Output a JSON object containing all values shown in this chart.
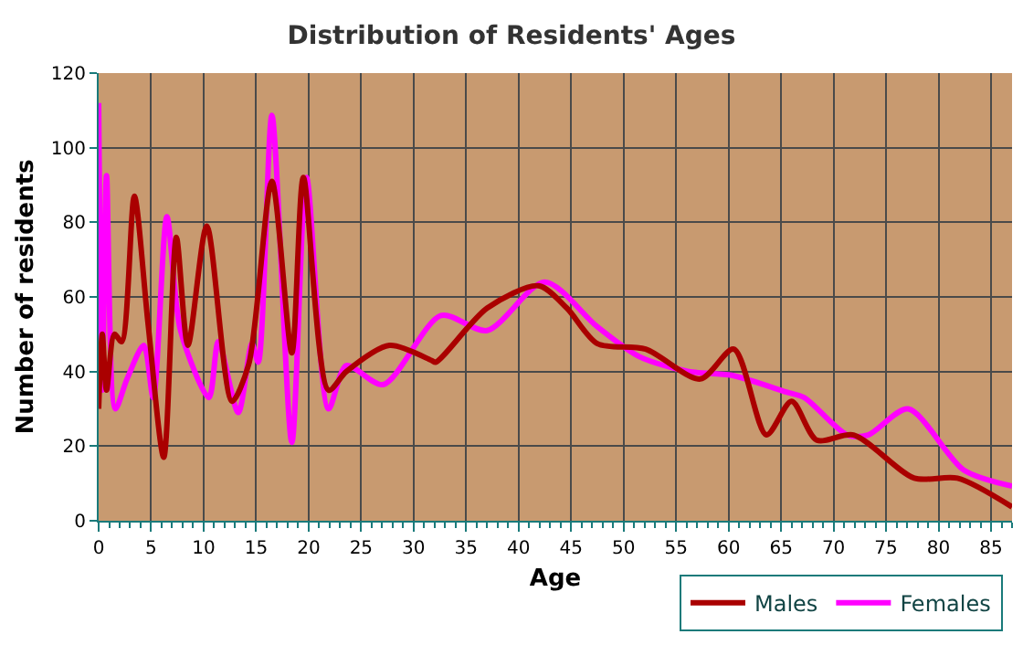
{
  "chart_data": {
    "type": "line",
    "title": "Distribution of Residents' Ages",
    "xlabel": "Age",
    "ylabel": "Number of residents",
    "xlim": [
      0,
      87
    ],
    "xticks": [
      0,
      5,
      10,
      15,
      20,
      25,
      30,
      35,
      40,
      45,
      50,
      55,
      60,
      65,
      70,
      75,
      80,
      85
    ],
    "ylim": [
      0,
      120
    ],
    "yticks": [
      0,
      20,
      40,
      60,
      80,
      100,
      120
    ],
    "grid": true,
    "legend": "bottom right",
    "marker": "none",
    "line_style": "solid",
    "series": [
      {
        "name": "Males",
        "color": "#aa0000",
        "x": [
          0,
          0.35,
          0.75,
          1.5,
          2.2,
          3.4,
          4.7,
          6.2,
          7.4,
          8.5,
          10.3,
          12.7,
          14.3,
          16.5,
          18.4,
          19.5,
          21.9,
          23.6,
          27.7,
          31.7,
          32.1,
          37,
          41.9,
          44.6,
          47.5,
          52.1,
          57.3,
          60.5,
          63.6,
          66,
          68.4,
          71.9,
          77.7,
          81.8,
          87
        ],
        "values": [
          30,
          50,
          35,
          50,
          48,
          87,
          53,
          17,
          76,
          47,
          79,
          32,
          42,
          91,
          45,
          92,
          35,
          40,
          47,
          43,
          42.5,
          57,
          63,
          57,
          47.5,
          46,
          38,
          46,
          23,
          32,
          21.6,
          23,
          11.4,
          11.4,
          3.7
        ]
      },
      {
        "name": "Females",
        "color": "#ff00ff",
        "x": [
          0,
          0.35,
          0.75,
          1.6,
          2.7,
          4.3,
          5.2,
          6.5,
          7.8,
          10.5,
          11.4,
          13.3,
          14.6,
          15.2,
          16.5,
          18.4,
          19.8,
          21.9,
          23.6,
          27.1,
          32.6,
          37,
          42.5,
          47.5,
          51.5,
          56.2,
          60.3,
          65.5,
          67.2,
          71.3,
          73.3,
          77.1,
          82.4,
          87
        ],
        "values": [
          112,
          35,
          92.5,
          30,
          38,
          47,
          33,
          81.5,
          51,
          33,
          48,
          29,
          47.5,
          42.5,
          108.7,
          21,
          92,
          30,
          41.6,
          36.5,
          55,
          51,
          64,
          52,
          44,
          40,
          39,
          34.5,
          33,
          23,
          23,
          30,
          13.6,
          9.3
        ]
      }
    ]
  }
}
